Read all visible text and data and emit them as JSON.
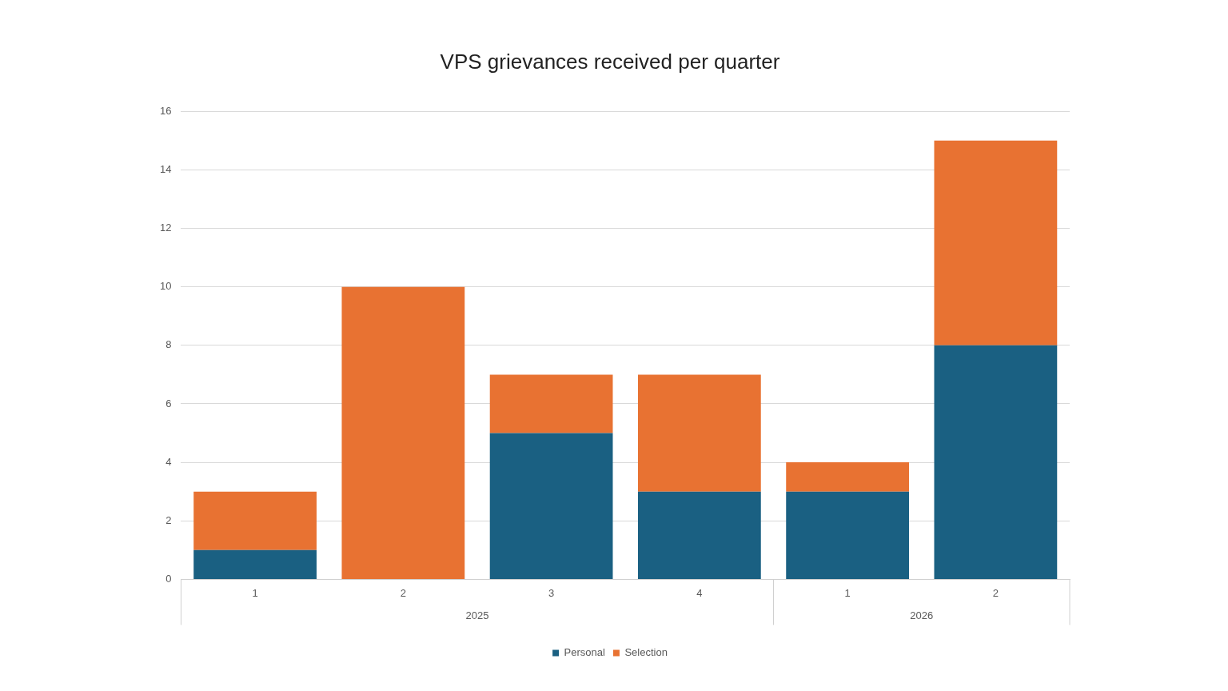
{
  "chart_data": {
    "type": "bar",
    "title": "VPS grievances received per quarter",
    "categories": [
      "1",
      "2",
      "3",
      "4",
      "1",
      "2"
    ],
    "series": [
      {
        "name": "Personal",
        "color": "#1a6082",
        "values": [
          1,
          0,
          5,
          3,
          3,
          8
        ]
      },
      {
        "name": "Selection",
        "color": "#e87232",
        "values": [
          2,
          10,
          2,
          4,
          1,
          7
        ]
      }
    ],
    "stacked": true,
    "ylim": [
      0,
      16
    ],
    "yticks": [
      0,
      2,
      4,
      6,
      8,
      10,
      12,
      14,
      16
    ],
    "grid": "y",
    "legend": "bottom",
    "annotations": [
      "2025",
      "2026"
    ]
  }
}
